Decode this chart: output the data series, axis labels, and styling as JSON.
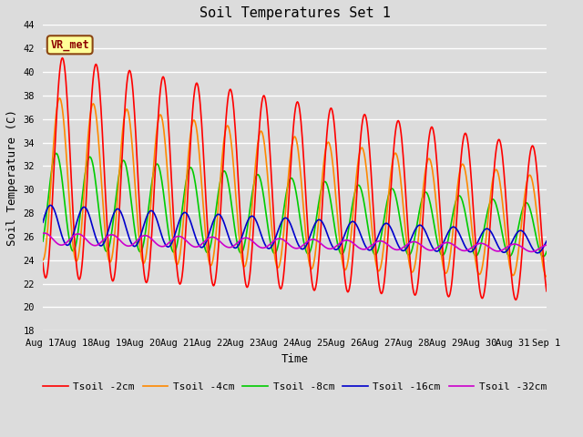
{
  "title": "Soil Temperatures Set 1",
  "xlabel": "Time",
  "ylabel": "Soil Temperature (C)",
  "ylim": [
    18,
    44
  ],
  "bg_color": "#dcdcdc",
  "plot_bg_color": "#dcdcdc",
  "grid_color": "white",
  "annotation_text": "VR_met",
  "series_labels": [
    "Tsoil -2cm",
    "Tsoil -4cm",
    "Tsoil -8cm",
    "Tsoil -16cm",
    "Tsoil -32cm"
  ],
  "series_colors": [
    "#ff0000",
    "#ff8800",
    "#00cc00",
    "#0000cc",
    "#cc00cc"
  ],
  "series_lw": [
    1.2,
    1.2,
    1.2,
    1.2,
    1.2
  ]
}
